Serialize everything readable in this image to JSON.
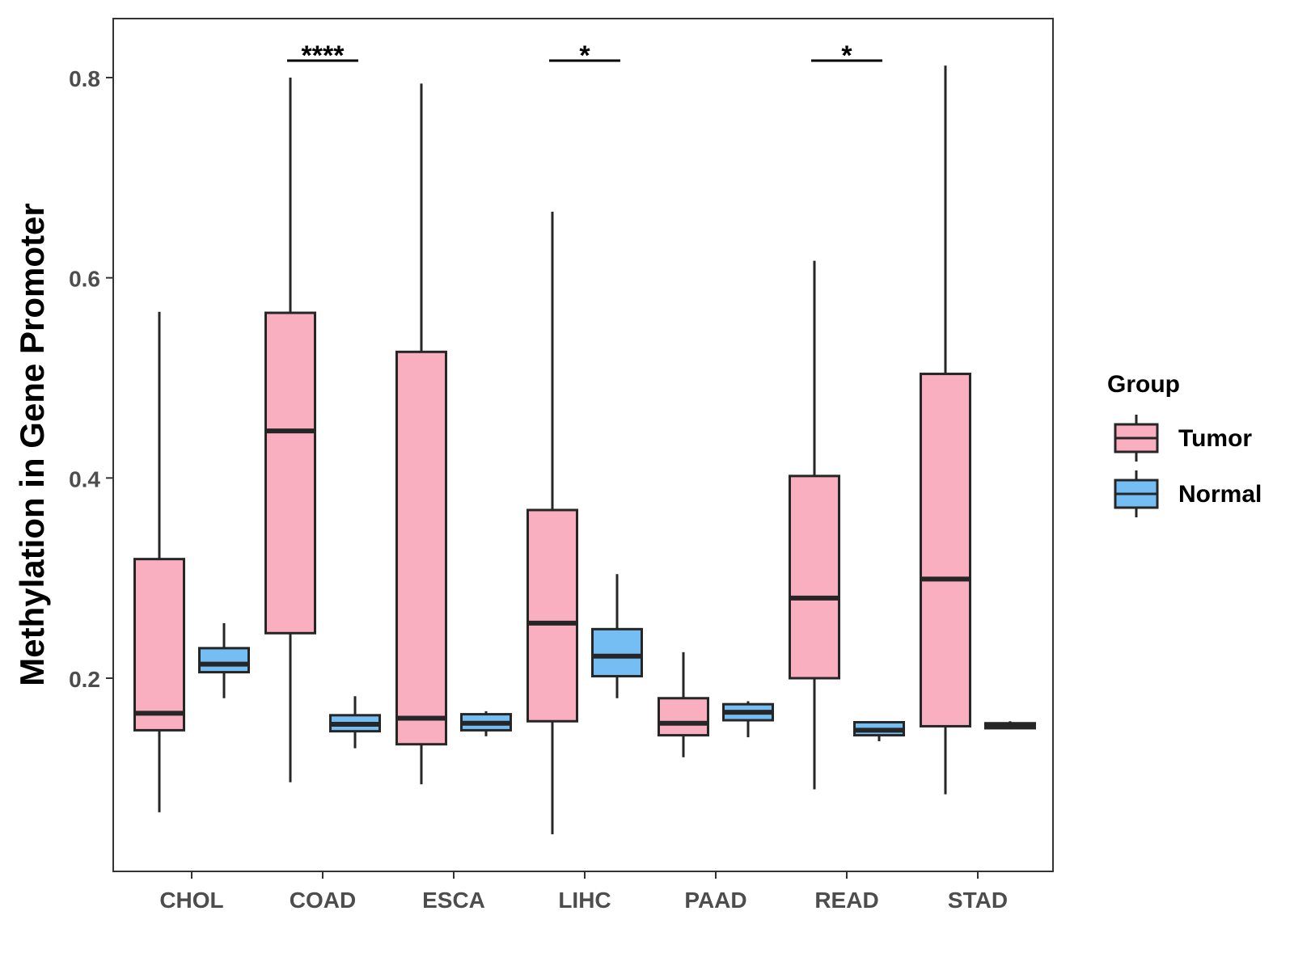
{
  "chart_data": {
    "type": "boxplot",
    "title": "",
    "xlabel": "",
    "ylabel": "Methylation in Gene Promoter",
    "ylim": [
      0.02,
      0.86
    ],
    "y_ticks": [
      {
        "value": 0.2,
        "label": "0.2"
      },
      {
        "value": 0.4,
        "label": "0.4"
      },
      {
        "value": 0.6,
        "label": "0.6"
      },
      {
        "value": 0.8,
        "label": "0.8"
      }
    ],
    "categories": [
      "CHOL",
      "COAD",
      "ESCA",
      "LIHC",
      "PAAD",
      "READ",
      "STAD"
    ],
    "legend": {
      "title": "Group",
      "position": "right",
      "entries": [
        {
          "name": "Tumor",
          "color": "#FAAFC0"
        },
        {
          "name": "Normal",
          "color": "#74BEF4"
        }
      ]
    },
    "series": [
      {
        "name": "Tumor",
        "color": "#FAAFC0",
        "boxes": [
          {
            "min": 0.066,
            "q1": 0.148,
            "median": 0.165,
            "q3": 0.319,
            "max": 0.566
          },
          {
            "min": 0.096,
            "q1": 0.245,
            "median": 0.447,
            "q3": 0.565,
            "max": 0.8
          },
          {
            "min": 0.094,
            "q1": 0.134,
            "median": 0.16,
            "q3": 0.526,
            "max": 0.794
          },
          {
            "min": 0.044,
            "q1": 0.157,
            "median": 0.255,
            "q3": 0.368,
            "max": 0.666
          },
          {
            "min": 0.121,
            "q1": 0.143,
            "median": 0.155,
            "q3": 0.18,
            "max": 0.226
          },
          {
            "min": 0.089,
            "q1": 0.2,
            "median": 0.28,
            "q3": 0.402,
            "max": 0.617
          },
          {
            "min": 0.084,
            "q1": 0.152,
            "median": 0.299,
            "q3": 0.504,
            "max": 0.812
          }
        ]
      },
      {
        "name": "Normal",
        "color": "#74BEF4",
        "boxes": [
          {
            "min": 0.18,
            "q1": 0.206,
            "median": 0.214,
            "q3": 0.23,
            "max": 0.255
          },
          {
            "min": 0.13,
            "q1": 0.147,
            "median": 0.154,
            "q3": 0.163,
            "max": 0.182
          },
          {
            "min": 0.142,
            "q1": 0.148,
            "median": 0.155,
            "q3": 0.164,
            "max": 0.167
          },
          {
            "min": 0.18,
            "q1": 0.202,
            "median": 0.222,
            "q3": 0.249,
            "max": 0.304
          },
          {
            "min": 0.141,
            "q1": 0.158,
            "median": 0.166,
            "q3": 0.174,
            "max": 0.177
          },
          {
            "min": 0.137,
            "q1": 0.143,
            "median": 0.148,
            "q3": 0.156,
            "max": 0.156
          },
          {
            "min": 0.149,
            "q1": 0.15,
            "median": 0.152,
            "q3": 0.155,
            "max": 0.157
          }
        ]
      }
    ],
    "annotations": [
      {
        "category": "COAD",
        "text": "****",
        "y": 0.817
      },
      {
        "category": "LIHC",
        "text": "*",
        "y": 0.817
      },
      {
        "category": "READ",
        "text": "*",
        "y": 0.817
      }
    ]
  }
}
